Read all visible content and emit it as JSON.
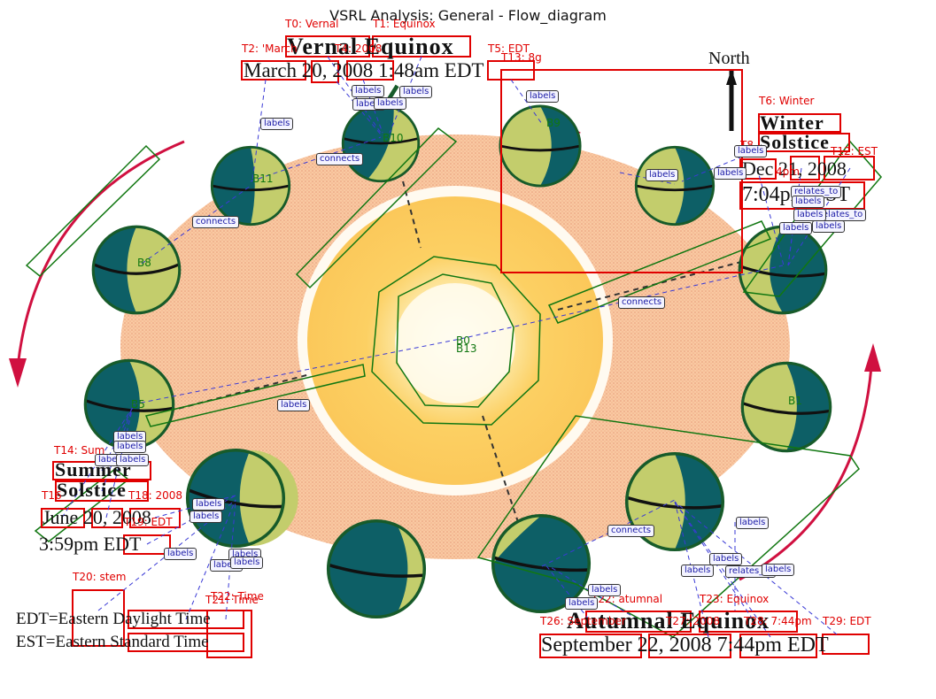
{
  "title": "VSRL Analysis: General - Flow_diagram",
  "compass_label": "North",
  "captions": {
    "vernal_title": "Vernal Equinox",
    "vernal_date": "March 20, 2008 1:48am EDT",
    "winter_title_1": "Winter",
    "winter_title_2": "Solstice",
    "winter_date": "Dec 21, 2008",
    "winter_time": "7:04pm EST",
    "summer_title_1": "Summer",
    "summer_title_2": "Solstice",
    "summer_date": "June 20, 2008",
    "summer_time": "3:59pm EDT",
    "autumnal_title": "Autumnal Equinox",
    "autumnal_date": "September 22, 2008 7:44pm EDT",
    "legend_edt": "EDT=Eastern Daylight Time",
    "legend_est": "EST=Eastern Standard Time"
  },
  "text_annotations": [
    "T0: Vernal",
    "T1: Equinox",
    "T2: 'March",
    "T4: 2008",
    "T5: EDT",
    "T6: Winter",
    "T8",
    "T12: EST",
    "T13: 8g",
    "T14: Sum",
    "T16",
    "T18: 2008",
    "T19: EDT",
    "T20: stem",
    "T21: Time",
    "T22: Time",
    "T23: Equinox",
    "T26: September",
    "T27: 2008",
    "T28: 7:44pm",
    "T29: EDT",
    "T22: atumnal",
    "4pm"
  ],
  "blob_ids": [
    "B0",
    "B13",
    "B5",
    "B8",
    "B9",
    "B10",
    "B11",
    "B1"
  ],
  "relation_labels": {
    "labels": "labels",
    "connects": "connects",
    "relates_to": "relates_to"
  },
  "colors": {
    "box_red": "#e00000",
    "bbox_green": "#117711",
    "relation_blue": "#3a3ad6",
    "sun_core": "#fff4c8",
    "sun_mid": "#fcd063",
    "orbit_fill": "#f7bf94",
    "earth_day": "#c3cd6c",
    "earth_night": "#0d5f66",
    "arrow_crimson": "#d01040"
  }
}
